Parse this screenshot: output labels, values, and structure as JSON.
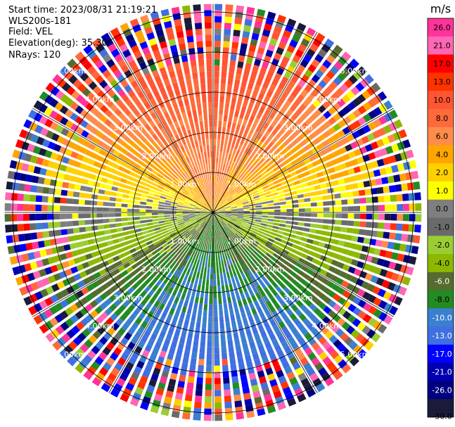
{
  "header": {
    "start_time": "Start time: 2023/08/31 21:19:21",
    "instrument": "WLS200s-181",
    "field": "Field: VEL",
    "elevation": "Elevation(deg): 35.30",
    "nrays": "NRays: 120"
  },
  "chart_data": {
    "type": "heatmap",
    "projection": "polar (PPI scan)",
    "range_max_km": 5.2,
    "range_rings_km": [
      1,
      2,
      3,
      4,
      5
    ],
    "ring_labels": [
      "1.00km",
      "2.00km",
      "3.00km",
      "4.00km",
      "5.00km"
    ],
    "nrays": 120,
    "colorbar": {
      "title": "m/s",
      "ticks": [
        "26.0",
        "21.0",
        "17.0",
        "13.0",
        "10.0",
        "8.0",
        "6.0",
        "4.0",
        "2.0",
        "1.0",
        "0.0",
        "-1.0",
        "-2.0",
        "-4.0",
        "-6.0",
        "-8.0",
        "-10.0",
        "-13.0",
        "-17.0",
        "-21.0",
        "-26.0",
        "-30.0"
      ],
      "bins": [
        {
          "from": 26,
          "to": 30,
          "color": "#ff3399"
        },
        {
          "from": 21,
          "to": 26,
          "color": "#ff66b3"
        },
        {
          "from": 17,
          "to": 21,
          "color": "#ff0000"
        },
        {
          "from": 13,
          "to": 17,
          "color": "#ff3300"
        },
        {
          "from": 10,
          "to": 13,
          "color": "#ff5533"
        },
        {
          "from": 8,
          "to": 10,
          "color": "#ff6a3a"
        },
        {
          "from": 6,
          "to": 8,
          "color": "#ff8c4a"
        },
        {
          "from": 4,
          "to": 6,
          "color": "#ffa500"
        },
        {
          "from": 2,
          "to": 4,
          "color": "#ffd000"
        },
        {
          "from": 1,
          "to": 2,
          "color": "#ffff00"
        },
        {
          "from": 0,
          "to": 1,
          "color": "#7f7f7f"
        },
        {
          "from": -1,
          "to": 0,
          "color": "#6a6a6a"
        },
        {
          "from": -2,
          "to": -1,
          "color": "#9acd32"
        },
        {
          "from": -4,
          "to": -2,
          "color": "#8cb800"
        },
        {
          "from": -6,
          "to": -4,
          "color": "#556b2f"
        },
        {
          "from": -8,
          "to": -6,
          "color": "#228b22"
        },
        {
          "from": -10,
          "to": -8,
          "color": "#3a7fd0"
        },
        {
          "from": -13,
          "to": -10,
          "color": "#3f6fe0"
        },
        {
          "from": -17,
          "to": -13,
          "color": "#0000ff"
        },
        {
          "from": -21,
          "to": -17,
          "color": "#0000b0"
        },
        {
          "from": -26,
          "to": -21,
          "color": "#000080"
        },
        {
          "from": -30,
          "to": -26,
          "color": "#1a1a3a"
        }
      ]
    },
    "velocity_pattern": {
      "description_note": "",
      "max_positive_azimuth_deg": 0,
      "amplitude_ms": 9,
      "noise_beyond_km": 3.6
    }
  }
}
